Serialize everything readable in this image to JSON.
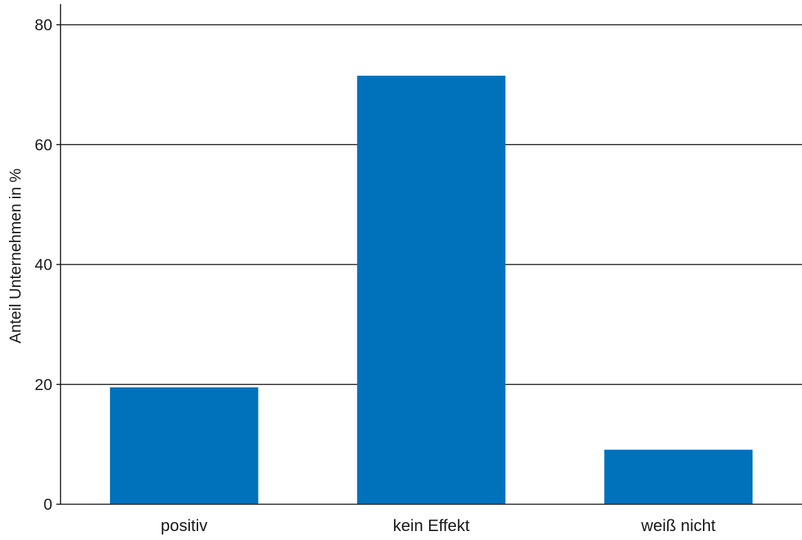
{
  "chart_data": {
    "type": "bar",
    "title": "",
    "xlabel": "",
    "ylabel": "Anteil Unternehmen in %",
    "categories": [
      "positiv",
      "kein Effekt",
      "weiß nicht"
    ],
    "values": [
      19.5,
      71.5,
      9.1
    ],
    "ylim": [
      0,
      80
    ],
    "yticks": [
      0,
      20,
      40,
      60,
      80
    ],
    "grid": true,
    "bar_color": "#0072bc"
  }
}
